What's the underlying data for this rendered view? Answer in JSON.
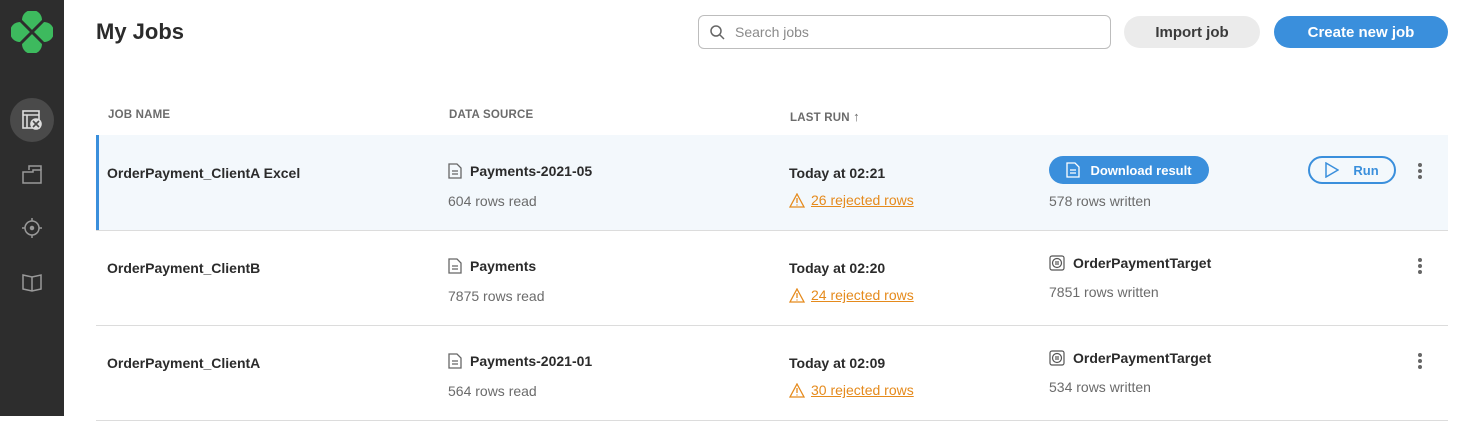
{
  "colors": {
    "accent": "#3a8fdc",
    "warning": "#e58a1c",
    "sidebar": "#2d2d2d",
    "logo": "#3dba5e"
  },
  "sidebar": {
    "items": [
      {
        "icon": "jobs-icon",
        "active": true
      },
      {
        "icon": "folder-icon"
      },
      {
        "icon": "target-icon"
      },
      {
        "icon": "book-icon"
      }
    ]
  },
  "header": {
    "title": "My Jobs",
    "search_placeholder": "Search jobs",
    "search_value": "",
    "import_label": "Import job",
    "create_label": "Create new job"
  },
  "table": {
    "columns": [
      "JOB NAME",
      "DATA SOURCE",
      "LAST RUN",
      "↑"
    ],
    "rows": [
      {
        "name": "OrderPayment_ClientA Excel",
        "source": "Payments-2021-05",
        "rows_read": "604 rows read",
        "last_run": "Today at 02:21",
        "rejected": "26 rejected rows",
        "download_label": "Download result",
        "rows_written": "578 rows written",
        "run_label": "Run"
      },
      {
        "name": "OrderPayment_ClientB",
        "source": "Payments",
        "rows_read": "7875 rows read",
        "last_run": "Today at 02:20",
        "rejected": "24 rejected rows",
        "target": "OrderPaymentTarget",
        "rows_written": "7851 rows written"
      },
      {
        "name": "OrderPayment_ClientA",
        "source": "Payments-2021-01",
        "rows_read": "564 rows read",
        "last_run": "Today at 02:09",
        "rejected": "30 rejected rows",
        "target": "OrderPaymentTarget",
        "rows_written": "534 rows written"
      }
    ]
  }
}
